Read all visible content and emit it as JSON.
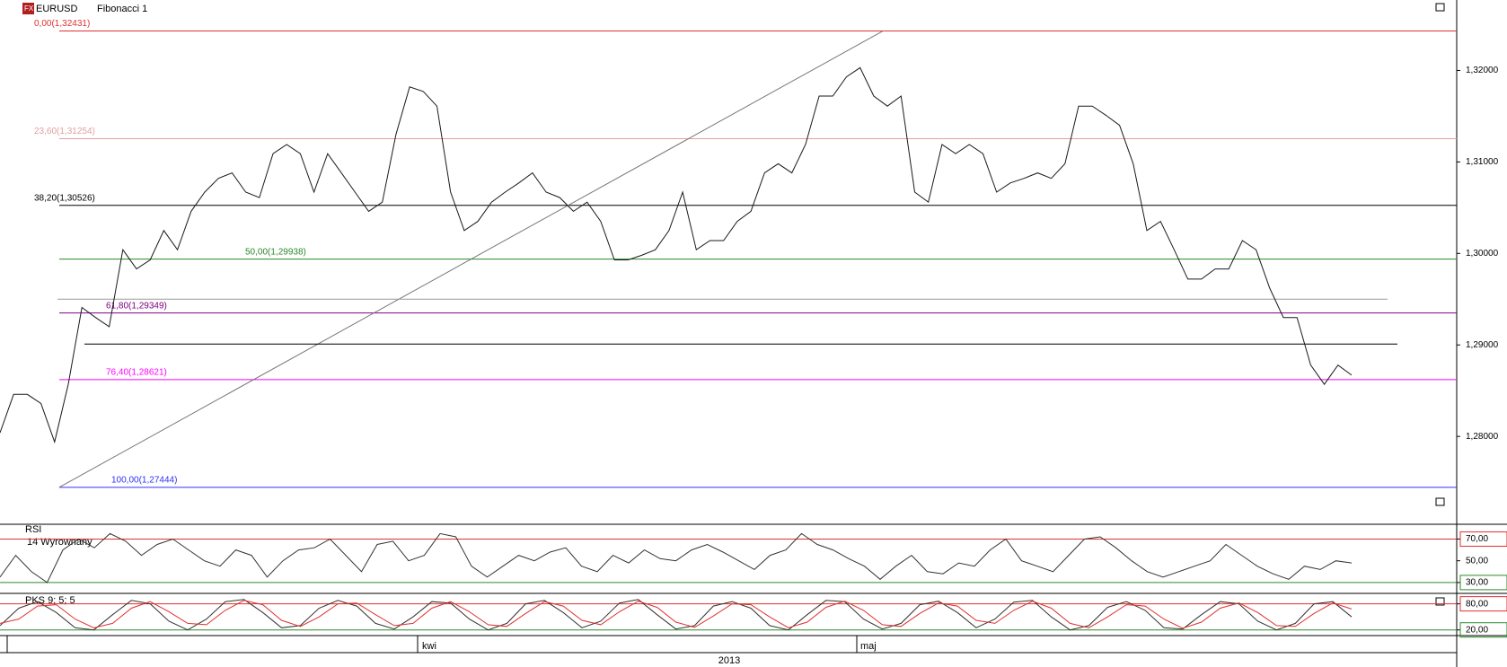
{
  "chart_data": [
    {
      "type": "line",
      "symbol": "EURUSD",
      "tool": "Fibonacci 1",
      "ylim": [
        1.2704,
        1.3277
      ],
      "yticks": [
        {
          "value": 1.28,
          "label": "1,28000"
        },
        {
          "value": 1.29,
          "label": "1,29000"
        },
        {
          "value": 1.3,
          "label": "1,30000"
        },
        {
          "value": 1.31,
          "label": "1,31000"
        },
        {
          "value": 1.32,
          "label": "1,32000"
        }
      ],
      "series": [
        {
          "color": "#1a1a1a",
          "values": [
            1.2804,
            1.2846,
            1.2846,
            1.2836,
            1.2794,
            1.2857,
            1.2941,
            1.293,
            1.292,
            1.3004,
            1.2983,
            1.2993,
            1.3025,
            1.3004,
            1.3046,
            1.3067,
            1.3082,
            1.3088,
            1.3067,
            1.3061,
            1.3109,
            1.3119,
            1.3109,
            1.3067,
            1.3109,
            1.3088,
            1.3067,
            1.3046,
            1.3056,
            1.313,
            1.3182,
            1.3177,
            1.3161,
            1.3067,
            1.3025,
            1.3035,
            1.3056,
            1.3067,
            1.3077,
            1.3088,
            1.3067,
            1.3061,
            1.3046,
            1.3056,
            1.3035,
            1.2993,
            1.2993,
            1.2998,
            1.3004,
            1.3025,
            1.3067,
            1.3004,
            1.3014,
            1.3014,
            1.3035,
            1.3046,
            1.3088,
            1.3098,
            1.3088,
            1.3119,
            1.3172,
            1.3172,
            1.3193,
            1.3203,
            1.3172,
            1.3161,
            1.3172,
            1.3067,
            1.3056,
            1.3119,
            1.3109,
            1.3119,
            1.3109,
            1.3067,
            1.3077,
            1.3082,
            1.3088,
            1.3082,
            1.3098,
            1.3161,
            1.3161,
            1.3151,
            1.314,
            1.3098,
            1.3025,
            1.3035,
            1.3004,
            1.2972,
            1.2972,
            1.2983,
            1.2983,
            1.3014,
            1.3004,
            1.2962,
            1.293,
            1.293,
            1.2878,
            1.2857,
            1.2878,
            1.2867
          ]
        }
      ],
      "fib_levels": [
        {
          "label": "0,00(1,32431)",
          "value": 1.32431,
          "color": "#e03030"
        },
        {
          "label": "23,60(1,31254)",
          "value": 1.31254,
          "color": "#e0a0a0"
        },
        {
          "label": "38,20(1,30526)",
          "value": 1.30526,
          "color": "#000000"
        },
        {
          "label": "50,00(1,29938)",
          "value": 1.29938,
          "color": "#2a8a2a"
        },
        {
          "label": "61,80(1,29349)",
          "value": 1.29349,
          "color": "#800080"
        },
        {
          "label": "76,40(1,28621)",
          "value": 1.28621,
          "color": "#ff00ff"
        },
        {
          "label": "100,00(1,27444)",
          "value": 1.27444,
          "color": "#3030ff"
        }
      ],
      "horizontal_lines": [
        {
          "value": 1.295,
          "color": "#999999"
        },
        {
          "value": 1.2901,
          "color": "#000000"
        }
      ],
      "months": [
        "kwi",
        "maj"
      ],
      "year": "2013"
    },
    {
      "type": "line",
      "title": "RSI",
      "subtitle": "14 Wyrownany",
      "ylim": [
        20,
        83.6
      ],
      "yticks": [
        {
          "value": 70,
          "label": "70,00"
        },
        {
          "value": 50,
          "label": "50,00"
        },
        {
          "value": 30,
          "label": "30,00"
        }
      ],
      "levels": [
        {
          "value": 70,
          "color": "#e03030"
        },
        {
          "value": 30,
          "color": "#2a8a2a"
        }
      ],
      "series": [
        {
          "color": "#333333",
          "values": [
            35,
            55,
            40,
            30,
            60,
            70,
            62,
            75,
            68,
            55,
            65,
            70,
            60,
            50,
            45,
            60,
            55,
            35,
            50,
            60,
            62,
            70,
            55,
            40,
            65,
            68,
            50,
            55,
            75,
            72,
            45,
            35,
            45,
            55,
            50,
            58,
            62,
            45,
            40,
            55,
            48,
            60,
            52,
            50,
            60,
            65,
            58,
            50,
            42,
            55,
            60,
            75,
            65,
            60,
            52,
            45,
            33,
            45,
            55,
            40,
            38,
            48,
            45,
            60,
            70,
            50,
            45,
            40,
            55,
            70,
            72,
            62,
            50,
            40,
            35,
            40,
            45,
            50,
            65,
            55,
            45,
            38,
            33,
            45,
            42,
            50,
            48
          ]
        }
      ]
    },
    {
      "type": "line",
      "title": "PKS 9; 5; 5",
      "ylim": [
        7,
        104
      ],
      "yticks": [
        {
          "value": 80,
          "label": "80,00"
        },
        {
          "value": 20,
          "label": "20,00"
        }
      ],
      "levels": [
        {
          "value": 80,
          "color": "#e03030"
        },
        {
          "value": 20,
          "color": "#2a8a2a"
        }
      ],
      "series": [
        {
          "color": "#333333",
          "values": [
            30,
            70,
            85,
            60,
            25,
            20,
            55,
            88,
            80,
            40,
            20,
            45,
            85,
            90,
            60,
            25,
            30,
            70,
            88,
            75,
            35,
            22,
            50,
            85,
            82,
            45,
            20,
            35,
            80,
            88,
            60,
            25,
            40,
            82,
            90,
            55,
            22,
            30,
            75,
            85,
            70,
            30,
            20,
            55,
            88,
            85,
            45,
            22,
            35,
            78,
            86,
            60,
            25,
            45,
            84,
            88,
            50,
            20,
            30,
            72,
            85,
            65,
            25,
            22,
            55,
            85,
            80,
            40,
            20,
            35,
            80,
            85,
            50
          ]
        },
        {
          "color": "#e03030",
          "values": [
            35,
            45,
            75,
            78,
            45,
            25,
            35,
            70,
            85,
            62,
            35,
            32,
            65,
            88,
            78,
            42,
            28,
            50,
            80,
            82,
            55,
            30,
            35,
            70,
            85,
            62,
            32,
            28,
            58,
            85,
            75,
            42,
            32,
            62,
            86,
            72,
            38,
            26,
            52,
            80,
            78,
            50,
            25,
            38,
            72,
            86,
            65,
            32,
            28,
            58,
            82,
            75,
            42,
            35,
            65,
            86,
            70,
            35,
            25,
            50,
            78,
            75,
            45,
            24,
            38,
            70,
            82,
            60,
            30,
            28,
            58,
            82,
            68
          ]
        }
      ]
    }
  ]
}
